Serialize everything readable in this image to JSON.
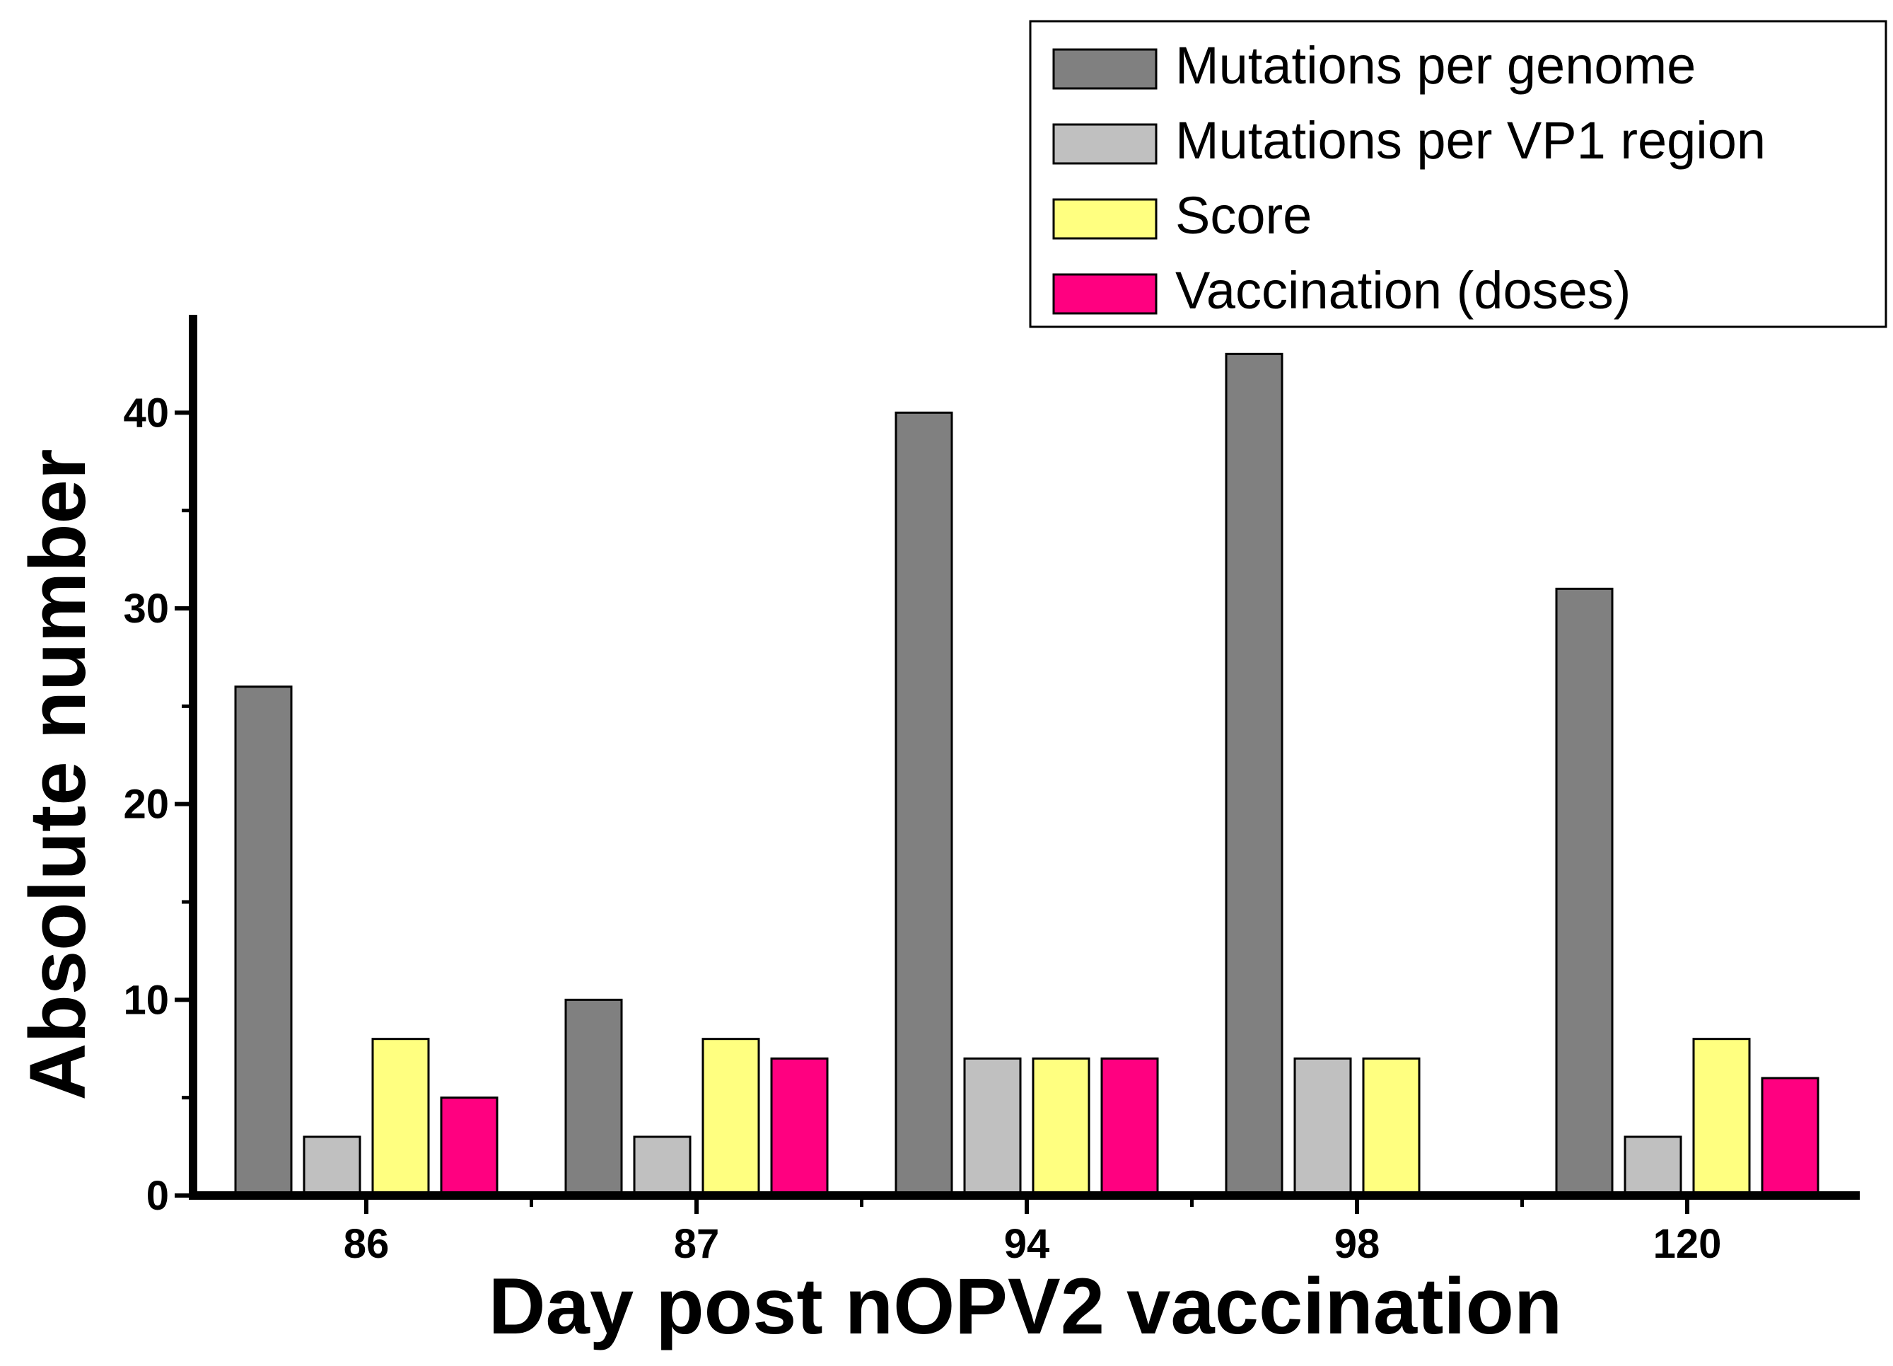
{
  "chart_data": {
    "type": "bar",
    "title": "",
    "xlabel": "Day post nOPV2 vaccination",
    "ylabel": "Absolute number",
    "categories": [
      "86",
      "87",
      "94",
      "98",
      "120"
    ],
    "ylim": [
      0,
      45
    ],
    "yticks": [
      "0",
      "10",
      "20",
      "30",
      "40"
    ],
    "grid": false,
    "legend_position": "top-right",
    "series": [
      {
        "name": "Mutations per genome",
        "color": "#808080",
        "values": [
          26,
          10,
          40,
          43,
          31
        ]
      },
      {
        "name": "Mutations per VP1 region",
        "color": "#c0c0c0",
        "values": [
          3,
          3,
          7,
          7,
          3
        ]
      },
      {
        "name": "Score",
        "color": "#ffff80",
        "values": [
          8,
          8,
          7,
          7,
          8
        ]
      },
      {
        "name": "Vaccination (doses)",
        "color": "#ff0080",
        "values": [
          5,
          7,
          7,
          null,
          6
        ]
      }
    ]
  }
}
